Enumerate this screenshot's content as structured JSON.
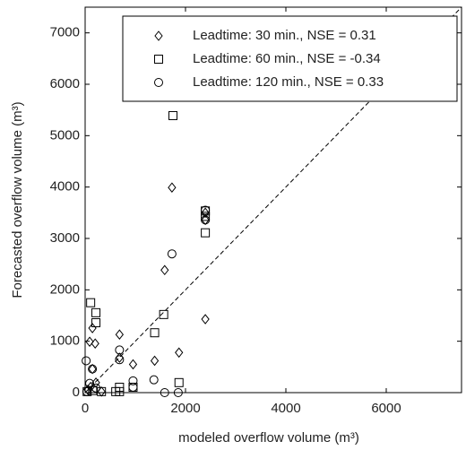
{
  "chart_data": {
    "type": "scatter",
    "x_label": "modeled overflow volume (m³)",
    "y_label": "Forecasted overflow volume (m³)",
    "xlim": [
      0,
      7500
    ],
    "ylim": [
      0,
      7500
    ],
    "xticks": [
      0,
      2000,
      4000,
      6000
    ],
    "yticks": [
      0,
      1000,
      2000,
      3000,
      4000,
      5000,
      6000,
      7000
    ],
    "legend": "top-right",
    "series": [
      {
        "name": "Leadtime: 30 min., NSE = 0.31",
        "color": "#000000",
        "marker": "diamond",
        "x": [
          1730,
          1585,
          2395,
          2395,
          2395,
          1870,
          1385,
          955,
          685,
          685,
          90,
          145,
          200,
          145,
          215,
          55,
          110,
          325
        ],
        "values": [
          3990,
          2385,
          3500,
          3360,
          1430,
          780,
          620,
          550,
          1130,
          680,
          990,
          1255,
          955,
          460,
          195,
          55,
          110,
          20
        ]
      },
      {
        "name": "Leadtime: 60 min., NSE = -0.34",
        "color": "#000000",
        "marker": "square",
        "x": [
          1750,
          1565,
          1385,
          2395,
          2395,
          2395,
          1870,
          955,
          685,
          685,
          110,
          215,
          215,
          325,
          610,
          40,
          150
        ],
        "values": [
          5390,
          1520,
          1165,
          3535,
          3430,
          3110,
          195,
          105,
          105,
          20,
          1750,
          1555,
          1360,
          20,
          20,
          20,
          40
        ]
      },
      {
        "name": "Leadtime: 120 min., NSE = 0.33",
        "color": "#000000",
        "marker": "circle",
        "x": [
          1730,
          2395,
          2395,
          1370,
          1585,
          1855,
          955,
          955,
          685,
          685,
          145,
          20,
          90,
          35,
          215
        ],
        "values": [
          2700,
          3550,
          3360,
          250,
          0,
          0,
          230,
          105,
          830,
          640,
          460,
          620,
          180,
          20,
          90
        ]
      }
    ]
  }
}
